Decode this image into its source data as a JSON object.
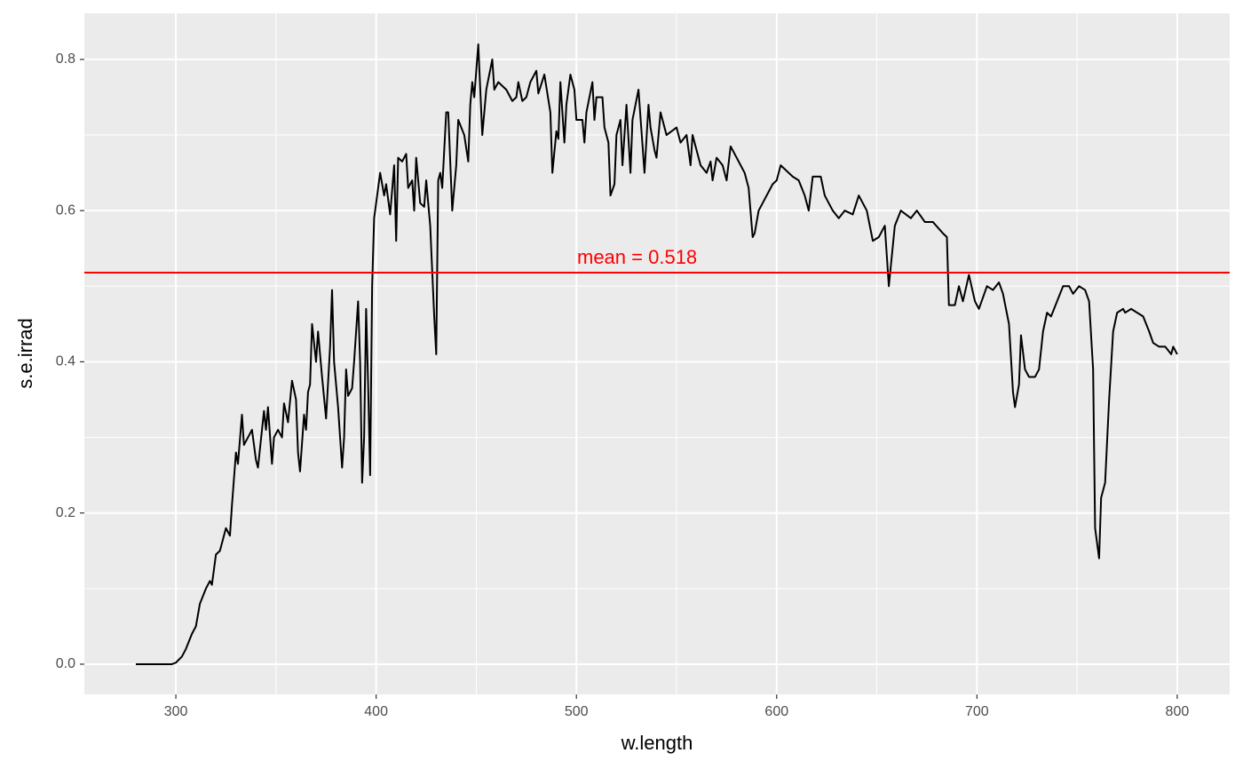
{
  "chart_data": {
    "type": "line",
    "xlabel": "w.length",
    "ylabel": "s.e.irrad",
    "xlim": [
      254.3,
      826.2
    ],
    "ylim": [
      -0.04,
      0.861
    ],
    "xticks": [
      300,
      400,
      500,
      600,
      700,
      800
    ],
    "yticks": [
      {
        "value": 0,
        "label": "0.0"
      },
      0.2,
      0.4,
      0.6,
      0.8
    ],
    "grid": true,
    "x": [
      280,
      290,
      298,
      300,
      303,
      305,
      308,
      310,
      312,
      315,
      317,
      318,
      320,
      322,
      325,
      327,
      328,
      330,
      331,
      333,
      334,
      336,
      338,
      340,
      341,
      344,
      345,
      346,
      348,
      349,
      351,
      353,
      354,
      356,
      358,
      360,
      361,
      362,
      364,
      365,
      366,
      367,
      368,
      370,
      371,
      373,
      375,
      377,
      378,
      379,
      381,
      383,
      384,
      385,
      386,
      388,
      389,
      391,
      392,
      393,
      394,
      395,
      396,
      397,
      398,
      399,
      402,
      404,
      405,
      407,
      409,
      410,
      411,
      413,
      415,
      416,
      418,
      419,
      420,
      422,
      424,
      425,
      427,
      429,
      430,
      431,
      432,
      433,
      435,
      436,
      438,
      440,
      441,
      444,
      446,
      447,
      448,
      449,
      451,
      453,
      455,
      458,
      459,
      461,
      465,
      468,
      470,
      471,
      473,
      475,
      477,
      480,
      481,
      484,
      487,
      488,
      490,
      491,
      492,
      494,
      495,
      497,
      499,
      500,
      503,
      504,
      505,
      508,
      509,
      510,
      513,
      514,
      516,
      517,
      519,
      520,
      522,
      523,
      525,
      527,
      528,
      531,
      534,
      536,
      537,
      539,
      540,
      542,
      545,
      550,
      552,
      555,
      557,
      558,
      562,
      565,
      567,
      568,
      570,
      573,
      575,
      577,
      580,
      584,
      586,
      588,
      589,
      591,
      593,
      595,
      598,
      600,
      602,
      604,
      608,
      611,
      614,
      616,
      618,
      622,
      624,
      628,
      631,
      634,
      638,
      641,
      645,
      648,
      651,
      654,
      656,
      659,
      662,
      667,
      670,
      674,
      678,
      683,
      685,
      686,
      689,
      691,
      693,
      696,
      699,
      701,
      705,
      708,
      711,
      713,
      716,
      718,
      719,
      721,
      722,
      724,
      726,
      729,
      731,
      733,
      735,
      737,
      740,
      743,
      746,
      748,
      751,
      754,
      756,
      758,
      759,
      761,
      762,
      764,
      766,
      768,
      770,
      773,
      774,
      777,
      780,
      783,
      786,
      788,
      791,
      794,
      797,
      798,
      800
    ],
    "series": [
      {
        "color": "#000000",
        "values": [
          0,
          0,
          0,
          0.002,
          0.01,
          0.02,
          0.04,
          0.05,
          0.08,
          0.1,
          0.11,
          0.105,
          0.145,
          0.15,
          0.18,
          0.17,
          0.21,
          0.28,
          0.265,
          0.33,
          0.29,
          0.3,
          0.31,
          0.27,
          0.26,
          0.335,
          0.31,
          0.34,
          0.265,
          0.3,
          0.31,
          0.3,
          0.345,
          0.32,
          0.375,
          0.35,
          0.28,
          0.255,
          0.33,
          0.31,
          0.36,
          0.37,
          0.45,
          0.4,
          0.44,
          0.38,
          0.325,
          0.42,
          0.495,
          0.4,
          0.34,
          0.26,
          0.3,
          0.39,
          0.355,
          0.365,
          0.4,
          0.48,
          0.4,
          0.24,
          0.3,
          0.47,
          0.37,
          0.25,
          0.5,
          0.59,
          0.65,
          0.62,
          0.635,
          0.595,
          0.66,
          0.56,
          0.67,
          0.665,
          0.675,
          0.63,
          0.64,
          0.6,
          0.67,
          0.61,
          0.605,
          0.64,
          0.58,
          0.46,
          0.41,
          0.64,
          0.65,
          0.63,
          0.73,
          0.73,
          0.6,
          0.66,
          0.72,
          0.7,
          0.665,
          0.74,
          0.77,
          0.75,
          0.82,
          0.7,
          0.76,
          0.8,
          0.76,
          0.77,
          0.76,
          0.745,
          0.75,
          0.77,
          0.745,
          0.75,
          0.77,
          0.785,
          0.755,
          0.78,
          0.73,
          0.65,
          0.705,
          0.695,
          0.77,
          0.69,
          0.74,
          0.78,
          0.76,
          0.72,
          0.72,
          0.69,
          0.73,
          0.77,
          0.72,
          0.75,
          0.75,
          0.71,
          0.69,
          0.62,
          0.635,
          0.7,
          0.72,
          0.66,
          0.74,
          0.65,
          0.72,
          0.76,
          0.65,
          0.74,
          0.71,
          0.68,
          0.67,
          0.73,
          0.7,
          0.71,
          0.69,
          0.7,
          0.66,
          0.7,
          0.66,
          0.65,
          0.665,
          0.64,
          0.67,
          0.66,
          0.64,
          0.685,
          0.67,
          0.65,
          0.63,
          0.565,
          0.57,
          0.6,
          0.61,
          0.62,
          0.635,
          0.64,
          0.66,
          0.655,
          0.645,
          0.64,
          0.62,
          0.6,
          0.645,
          0.645,
          0.62,
          0.6,
          0.59,
          0.6,
          0.595,
          0.62,
          0.6,
          0.56,
          0.565,
          0.58,
          0.5,
          0.58,
          0.6,
          0.59,
          0.6,
          0.585,
          0.585,
          0.57,
          0.565,
          0.475,
          0.475,
          0.5,
          0.48,
          0.515,
          0.48,
          0.47,
          0.5,
          0.495,
          0.505,
          0.49,
          0.45,
          0.36,
          0.34,
          0.37,
          0.435,
          0.39,
          0.38,
          0.38,
          0.39,
          0.44,
          0.465,
          0.46,
          0.48,
          0.5,
          0.5,
          0.49,
          0.5,
          0.495,
          0.48,
          0.39,
          0.18,
          0.14,
          0.22,
          0.24,
          0.35,
          0.44,
          0.465,
          0.47,
          0.465,
          0.47,
          0.465,
          0.46,
          0.44,
          0.425,
          0.42,
          0.42,
          0.41,
          0.42,
          0.41
        ]
      }
    ],
    "hline": {
      "value": 0.518,
      "color": "#ff0000",
      "label": "mean = 0.518"
    }
  }
}
